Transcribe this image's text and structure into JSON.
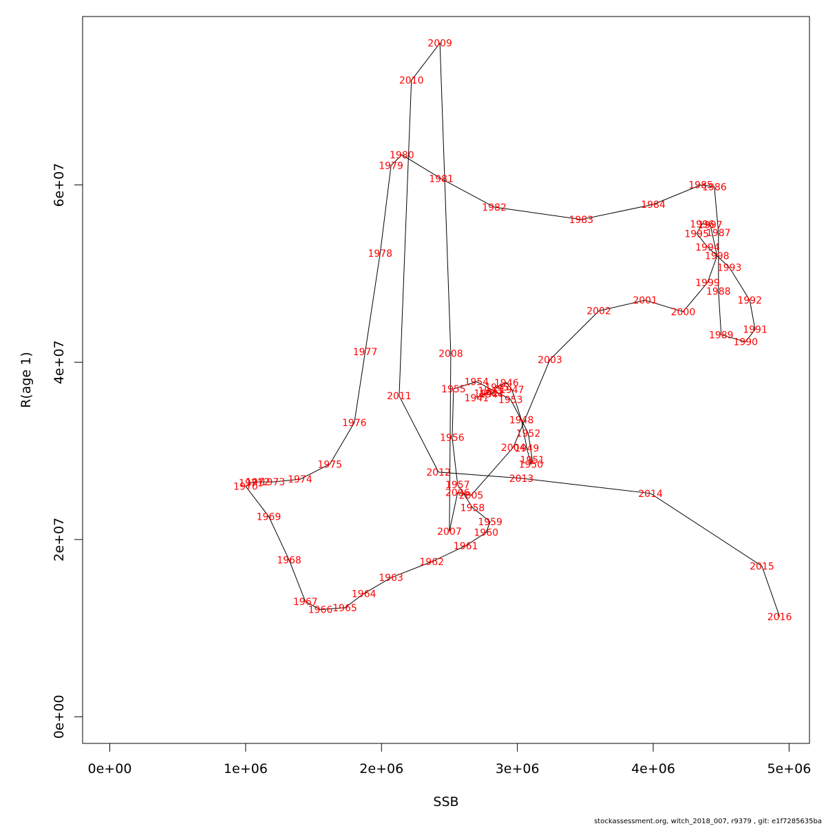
{
  "chart_data": {
    "type": "line",
    "xlabel": "SSB",
    "ylabel": "R(age 1)",
    "xlim": [
      -200000,
      5150000
    ],
    "ylim": [
      -3000000,
      79000000
    ],
    "x_ticks": [
      0,
      1000000,
      2000000,
      3000000,
      4000000,
      5000000
    ],
    "x_tick_labels": [
      "0e+00",
      "1e+06",
      "2e+06",
      "3e+06",
      "4e+06",
      "5e+06"
    ],
    "y_ticks": [
      0,
      20000000,
      40000000,
      60000000
    ],
    "y_tick_labels": [
      "0e+00",
      "2e+07",
      "4e+07",
      "6e+07"
    ],
    "line_color": "#000000",
    "label_color": "#ff0000",
    "points": [
      {
        "year": "1941",
        "x": 2700000,
        "y": 36000000
      },
      {
        "year": "1942",
        "x": 2770000,
        "y": 36500000
      },
      {
        "year": "1943",
        "x": 2800000,
        "y": 36800000
      },
      {
        "year": "1944",
        "x": 2810000,
        "y": 36400000
      },
      {
        "year": "1945",
        "x": 2850000,
        "y": 37200000
      },
      {
        "year": "1946",
        "x": 2920000,
        "y": 37700000
      },
      {
        "year": "1947",
        "x": 2960000,
        "y": 36900000
      },
      {
        "year": "1948",
        "x": 3030000,
        "y": 33500000
      },
      {
        "year": "1949",
        "x": 3070000,
        "y": 30300000
      },
      {
        "year": "1950",
        "x": 3100000,
        "y": 28500000
      },
      {
        "year": "1951",
        "x": 3110000,
        "y": 29000000
      },
      {
        "year": "1952",
        "x": 3080000,
        "y": 32000000
      },
      {
        "year": "1953",
        "x": 2950000,
        "y": 35800000
      },
      {
        "year": "1954",
        "x": 2700000,
        "y": 37800000
      },
      {
        "year": "1955",
        "x": 2530000,
        "y": 37000000
      },
      {
        "year": "1956",
        "x": 2520000,
        "y": 31500000
      },
      {
        "year": "1957",
        "x": 2560000,
        "y": 26200000
      },
      {
        "year": "1958",
        "x": 2670000,
        "y": 23600000
      },
      {
        "year": "1959",
        "x": 2800000,
        "y": 22000000
      },
      {
        "year": "1960",
        "x": 2770000,
        "y": 20800000
      },
      {
        "year": "1961",
        "x": 2620000,
        "y": 19300000
      },
      {
        "year": "1962",
        "x": 2370000,
        "y": 17500000
      },
      {
        "year": "1963",
        "x": 2070000,
        "y": 15700000
      },
      {
        "year": "1964",
        "x": 1870000,
        "y": 13900000
      },
      {
        "year": "1965",
        "x": 1730000,
        "y": 12300000
      },
      {
        "year": "1966",
        "x": 1550000,
        "y": 12100000
      },
      {
        "year": "1967",
        "x": 1440000,
        "y": 13000000
      },
      {
        "year": "1968",
        "x": 1320000,
        "y": 17700000
      },
      {
        "year": "1969",
        "x": 1170000,
        "y": 22600000
      },
      {
        "year": "1970",
        "x": 1000000,
        "y": 26000000
      },
      {
        "year": "1971",
        "x": 1040000,
        "y": 26400000
      },
      {
        "year": "1972",
        "x": 1090000,
        "y": 26500000
      },
      {
        "year": "1973",
        "x": 1200000,
        "y": 26500000
      },
      {
        "year": "1974",
        "x": 1400000,
        "y": 26800000
      },
      {
        "year": "1975",
        "x": 1620000,
        "y": 28500000
      },
      {
        "year": "1976",
        "x": 1800000,
        "y": 33200000
      },
      {
        "year": "1977",
        "x": 1880000,
        "y": 41200000
      },
      {
        "year": "1978",
        "x": 1990000,
        "y": 52300000
      },
      {
        "year": "1979",
        "x": 2070000,
        "y": 62200000
      },
      {
        "year": "1980",
        "x": 2150000,
        "y": 63400000
      },
      {
        "year": "1981",
        "x": 2440000,
        "y": 60700000
      },
      {
        "year": "1982",
        "x": 2830000,
        "y": 57500000
      },
      {
        "year": "1983",
        "x": 3470000,
        "y": 56100000
      },
      {
        "year": "1984",
        "x": 4000000,
        "y": 57800000
      },
      {
        "year": "1985",
        "x": 4350000,
        "y": 60000000
      },
      {
        "year": "1986",
        "x": 4450000,
        "y": 59800000
      },
      {
        "year": "1987",
        "x": 4480000,
        "y": 54600000
      },
      {
        "year": "1988",
        "x": 4480000,
        "y": 48000000
      },
      {
        "year": "1989",
        "x": 4500000,
        "y": 43100000
      },
      {
        "year": "1990",
        "x": 4680000,
        "y": 42300000
      },
      {
        "year": "1991",
        "x": 4750000,
        "y": 43700000
      },
      {
        "year": "1992",
        "x": 4710000,
        "y": 47000000
      },
      {
        "year": "1993",
        "x": 4560000,
        "y": 50700000
      },
      {
        "year": "1994",
        "x": 4400000,
        "y": 53000000
      },
      {
        "year": "1995",
        "x": 4320000,
        "y": 54500000
      },
      {
        "year": "1996",
        "x": 4360000,
        "y": 55600000
      },
      {
        "year": "1997",
        "x": 4420000,
        "y": 55500000
      },
      {
        "year": "1998",
        "x": 4470000,
        "y": 52000000
      },
      {
        "year": "1999",
        "x": 4400000,
        "y": 49000000
      },
      {
        "year": "2000",
        "x": 4220000,
        "y": 45700000
      },
      {
        "year": "2001",
        "x": 3940000,
        "y": 47000000
      },
      {
        "year": "2002",
        "x": 3600000,
        "y": 45800000
      },
      {
        "year": "2003",
        "x": 3240000,
        "y": 40300000
      },
      {
        "year": "2004",
        "x": 2970000,
        "y": 30400000
      },
      {
        "year": "2005",
        "x": 2660000,
        "y": 25000000
      },
      {
        "year": "2006",
        "x": 2560000,
        "y": 25300000
      },
      {
        "year": "2007",
        "x": 2500000,
        "y": 20900000
      },
      {
        "year": "2008",
        "x": 2510000,
        "y": 41000000
      },
      {
        "year": "2009",
        "x": 2430000,
        "y": 76000000
      },
      {
        "year": "2010",
        "x": 2220000,
        "y": 71800000
      },
      {
        "year": "2011",
        "x": 2130000,
        "y": 36200000
      },
      {
        "year": "2012",
        "x": 2420000,
        "y": 27600000
      },
      {
        "year": "2013",
        "x": 3030000,
        "y": 26900000
      },
      {
        "year": "2014",
        "x": 3980000,
        "y": 25200000
      },
      {
        "year": "2015",
        "x": 4800000,
        "y": 17000000
      },
      {
        "year": "2016",
        "x": 4930000,
        "y": 11300000
      }
    ]
  },
  "footer": "stockassessment.org, witch_2018_007, r9379 , git: e1f7285635ba"
}
